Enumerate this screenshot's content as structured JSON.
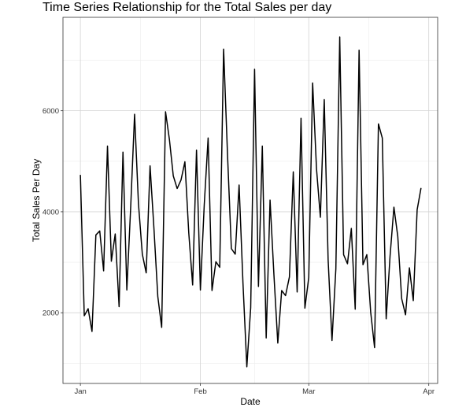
{
  "chart_data": {
    "type": "line",
    "title": "Time Series Relationship for the Total Sales per day",
    "xlabel": "Date",
    "ylabel": "Total Sales Per Day",
    "x_ticks": [
      {
        "label": "Jan",
        "day": 0
      },
      {
        "label": "Feb",
        "day": 31
      },
      {
        "label": "Mar",
        "day": 59
      },
      {
        "label": "Apr",
        "day": 90
      }
    ],
    "y_ticks": [
      2000,
      4000,
      6000
    ],
    "xlim": [
      -4.5,
      92.3
    ],
    "ylim": [
      600,
      7850
    ],
    "grid": true,
    "line_color": "#000000",
    "x_start_date": "2019-01-01",
    "series": [
      {
        "values": [
          4730,
          1940,
          2080,
          1630,
          3540,
          3620,
          2830,
          5300,
          3020,
          3560,
          2120,
          5180,
          2450,
          4100,
          5930,
          4160,
          3160,
          2790,
          4910,
          3670,
          2320,
          1710,
          5980,
          5430,
          4710,
          4460,
          4630,
          4990,
          3580,
          2550,
          5220,
          2450,
          4140,
          5460,
          2440,
          3010,
          2900,
          7220,
          5150,
          3270,
          3160,
          4530,
          2590,
          930,
          2100,
          6820,
          2520,
          5300,
          1500,
          4230,
          2750,
          1400,
          2440,
          2340,
          2710,
          4790,
          2410,
          5850,
          2090,
          2700,
          6550,
          4850,
          3890,
          6220,
          3050,
          1450,
          2870,
          7460,
          3150,
          2970,
          3670,
          2070,
          7200,
          2950,
          3150,
          2010,
          1310,
          5740,
          5460,
          1880,
          3120,
          4090,
          3510,
          2280,
          1960,
          2890,
          2240,
          4040,
          4470
        ]
      }
    ]
  }
}
